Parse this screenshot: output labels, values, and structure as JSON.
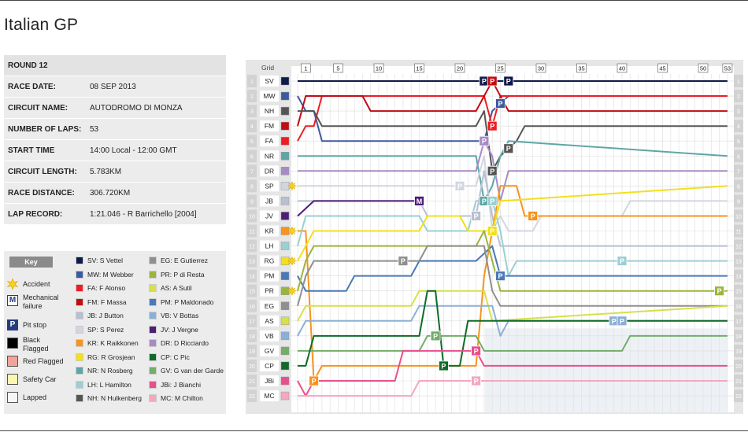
{
  "title": "Italian GP",
  "info": [
    {
      "label": "ROUND 12",
      "value": ""
    },
    {
      "label": "RACE DATE:",
      "value": "08 SEP 2013"
    },
    {
      "label": "CIRCUIT NAME:",
      "value": "AUTODROMO DI MONZA"
    },
    {
      "label": "NUMBER OF LAPS:",
      "value": "53"
    },
    {
      "label": "START TIME",
      "value": "14:00 Local - 12:00 GMT"
    },
    {
      "label": "CIRCUIT LENGTH:",
      "value": "5.783KM"
    },
    {
      "label": "RACE DISTANCE:",
      "value": "306.720KM"
    },
    {
      "label": "LAP RECORD:",
      "value": "1:21.046 - R Barrichello [2004]"
    }
  ],
  "key": {
    "heading": "Key",
    "symbols": [
      {
        "label": "Accident",
        "icon": "accident-icon"
      },
      {
        "label": "Mechanical failure",
        "icon": "mechanical-failure-icon",
        "letter": "M"
      },
      {
        "label": "Pit stop",
        "icon": "pit-stop-icon",
        "letter": "P"
      },
      {
        "label": "Black Flagged",
        "icon": "black-flag-icon",
        "color": "#000000"
      },
      {
        "label": "Red Flagged",
        "icon": "red-flag-icon",
        "color": "#f2a49a"
      },
      {
        "label": "Safety Car",
        "icon": "safety-car-icon",
        "color": "#fbf6b0"
      },
      {
        "label": "Lapped",
        "icon": "lapped-icon",
        "color": "#f6f6f6"
      }
    ]
  },
  "drivers": [
    {
      "code": "SV",
      "name": "SV: S Vettel",
      "color": "#0e1a4a",
      "grid": 1
    },
    {
      "code": "MW",
      "name": "MW: M Webber",
      "color": "#3d5a9e",
      "grid": 2
    },
    {
      "code": "FA",
      "name": "FA: F Alonso",
      "color": "#ee1c24",
      "grid": 5
    },
    {
      "code": "FM",
      "name": "FM: F Massa",
      "color": "#c10c12",
      "grid": 4
    },
    {
      "code": "JB",
      "name": "JB: J Button",
      "color": "#b8bfd1",
      "grid": 9
    },
    {
      "code": "SP",
      "name": "SP: S Perez",
      "color": "#d2d6e0",
      "grid": 8
    },
    {
      "code": "KR",
      "name": "KR: K Raikkonen",
      "color": "#f7941d",
      "grid": 11
    },
    {
      "code": "RG",
      "name": "RG: R Grosjean",
      "color": "#f2e01c",
      "grid": 13
    },
    {
      "code": "NR",
      "name": "NR: N Rosberg",
      "color": "#5ea6a6",
      "grid": 6
    },
    {
      "code": "LH",
      "name": "LH: L Hamilton",
      "color": "#9ccfd2",
      "grid": 12
    },
    {
      "code": "NH",
      "name": "NH: N Hulkenberg",
      "color": "#555555",
      "grid": 3
    },
    {
      "code": "EG",
      "name": "EG: E Gutierrez",
      "color": "#8f8f8f",
      "grid": 16
    },
    {
      "code": "PR",
      "name": "PR: P di Resta",
      "color": "#9bb53c",
      "grid": 15
    },
    {
      "code": "AS",
      "name": "AS: A Sutil",
      "color": "#d6e04a",
      "grid": 17
    },
    {
      "code": "PM",
      "name": "PM: P Maldonado",
      "color": "#4a78b8",
      "grid": 14
    },
    {
      "code": "VB",
      "name": "VB: V Bottas",
      "color": "#8bb0d6",
      "grid": 18
    },
    {
      "code": "JV",
      "name": "JV: J Vergne",
      "color": "#4e1d74",
      "grid": 10
    },
    {
      "code": "DR",
      "name": "DR: D Ricciardo",
      "color": "#a78bc4",
      "grid": 7
    },
    {
      "code": "CP",
      "name": "CP: C Pic",
      "color": "#0f6b27",
      "grid": 20
    },
    {
      "code": "GV",
      "name": "GV: G van der Garde",
      "color": "#72ad6a",
      "grid": 19
    },
    {
      "code": "JBi",
      "name": "JBi: J Bianchi",
      "color": "#e8508b",
      "grid": 21
    },
    {
      "code": "MC",
      "name": "MC: M Chilton",
      "color": "#f4a7bf",
      "grid": 22
    }
  ],
  "chart_data": {
    "type": "line",
    "title": "",
    "xlabel": "",
    "ylabel": "",
    "header_label": "Grid",
    "laps_total": 53,
    "lap_ticks": [
      "1",
      "5",
      "10",
      "15",
      "20",
      "25",
      "30",
      "35",
      "40",
      "45",
      "50",
      "53"
    ],
    "positions": 22,
    "grid_order": [
      "SV",
      "MW",
      "NH",
      "FM",
      "FA",
      "NR",
      "DR",
      "SP",
      "JB",
      "JV",
      "KR",
      "LH",
      "RG",
      "PM",
      "PR",
      "EG",
      "AS",
      "VB",
      "GV",
      "CP",
      "JBi",
      "MC"
    ],
    "series": [
      {
        "code": "SV",
        "points": [
          [
            0,
            1
          ],
          [
            53,
            1
          ]
        ]
      },
      {
        "code": "MW",
        "points": [
          [
            0,
            2
          ],
          [
            1,
            3
          ],
          [
            2,
            3
          ],
          [
            3,
            5
          ],
          [
            23,
            5
          ],
          [
            24,
            3
          ],
          [
            26,
            2
          ],
          [
            28,
            2
          ],
          [
            53,
            2
          ]
        ]
      },
      {
        "code": "FA",
        "points": [
          [
            0,
            5
          ],
          [
            1,
            4
          ],
          [
            2,
            4
          ],
          [
            3,
            2
          ],
          [
            8,
            2
          ],
          [
            9,
            2
          ],
          [
            22,
            2
          ],
          [
            23,
            2
          ],
          [
            24,
            4
          ],
          [
            25,
            2
          ],
          [
            53,
            2
          ]
        ]
      },
      {
        "code": "FM",
        "points": [
          [
            0,
            4
          ],
          [
            1,
            2
          ],
          [
            8,
            2
          ],
          [
            9,
            3
          ],
          [
            22,
            3
          ],
          [
            23,
            2
          ],
          [
            24,
            1
          ],
          [
            25,
            2
          ],
          [
            26,
            3
          ],
          [
            53,
            3
          ]
        ]
      },
      {
        "code": "NH",
        "points": [
          [
            0,
            3
          ],
          [
            2,
            3
          ],
          [
            3,
            4
          ],
          [
            22,
            4
          ],
          [
            23,
            3
          ],
          [
            24,
            7
          ],
          [
            25,
            6
          ],
          [
            27,
            5
          ],
          [
            28,
            4
          ],
          [
            53,
            4
          ]
        ]
      },
      {
        "code": "NR",
        "points": [
          [
            0,
            6
          ],
          [
            22,
            6
          ],
          [
            23,
            9
          ],
          [
            24,
            8
          ],
          [
            25,
            6
          ],
          [
            26,
            5
          ],
          [
            53,
            6
          ]
        ]
      },
      {
        "code": "DR",
        "points": [
          [
            0,
            7
          ],
          [
            22,
            7
          ],
          [
            23,
            5
          ],
          [
            24,
            6
          ],
          [
            25,
            9
          ],
          [
            26,
            7
          ],
          [
            53,
            7
          ]
        ]
      },
      {
        "code": "SP",
        "points": [
          [
            0,
            8
          ],
          [
            22,
            8
          ],
          [
            23,
            6
          ],
          [
            24,
            11
          ],
          [
            25,
            10
          ],
          [
            26,
            11
          ],
          [
            29,
            11
          ],
          [
            30,
            10
          ],
          [
            40,
            10
          ],
          [
            41,
            9
          ],
          [
            53,
            9
          ]
        ]
      },
      {
        "code": "JB",
        "points": [
          [
            0,
            9
          ],
          [
            15,
            9
          ],
          [
            16,
            10
          ],
          [
            22,
            10
          ],
          [
            23,
            7
          ],
          [
            24,
            10
          ],
          [
            25,
            12
          ],
          [
            53,
            12
          ]
        ]
      },
      {
        "code": "JV",
        "points": [
          [
            0,
            10
          ],
          [
            2,
            9
          ],
          [
            15,
            9
          ]
        ]
      },
      {
        "code": "KR",
        "points": [
          [
            0,
            11
          ],
          [
            1,
            11
          ],
          [
            2,
            21
          ],
          [
            3,
            20
          ],
          [
            22,
            20
          ],
          [
            23,
            14
          ],
          [
            25,
            8
          ],
          [
            27,
            8
          ],
          [
            28,
            10
          ],
          [
            53,
            10
          ]
        ]
      },
      {
        "code": "LH",
        "points": [
          [
            0,
            12
          ],
          [
            1,
            10
          ],
          [
            15,
            10
          ],
          [
            16,
            11
          ],
          [
            21,
            11
          ],
          [
            22,
            9
          ],
          [
            24,
            9
          ],
          [
            25,
            11
          ],
          [
            26,
            14
          ],
          [
            27,
            13
          ],
          [
            53,
            13
          ]
        ]
      },
      {
        "code": "RG",
        "points": [
          [
            0,
            13
          ],
          [
            1,
            12
          ],
          [
            2,
            11
          ],
          [
            15,
            11
          ],
          [
            16,
            10
          ],
          [
            20,
            10
          ],
          [
            21,
            11
          ],
          [
            24,
            11
          ],
          [
            25,
            9
          ],
          [
            53,
            8
          ]
        ]
      },
      {
        "code": "PM",
        "points": [
          [
            0,
            14
          ],
          [
            1,
            15
          ],
          [
            6,
            15
          ],
          [
            7,
            14
          ],
          [
            14,
            14
          ],
          [
            15,
            13
          ],
          [
            22,
            13
          ],
          [
            24,
            12
          ],
          [
            25,
            14
          ],
          [
            53,
            14
          ]
        ]
      },
      {
        "code": "PR",
        "points": [
          [
            0,
            15
          ],
          [
            1,
            13
          ],
          [
            2,
            12
          ],
          [
            22,
            12
          ],
          [
            23,
            11
          ],
          [
            24,
            13
          ],
          [
            25,
            15
          ],
          [
            52,
            15
          ],
          [
            53,
            15
          ]
        ]
      },
      {
        "code": "EG",
        "points": [
          [
            0,
            16
          ],
          [
            1,
            14
          ],
          [
            2,
            13
          ],
          [
            15,
            13
          ],
          [
            16,
            12
          ],
          [
            23,
            12
          ],
          [
            24,
            15
          ],
          [
            25,
            16
          ],
          [
            53,
            16
          ]
        ]
      },
      {
        "code": "AS",
        "points": [
          [
            0,
            17
          ],
          [
            1,
            16
          ],
          [
            2,
            16
          ],
          [
            14,
            16
          ],
          [
            15,
            15
          ],
          [
            23,
            15
          ],
          [
            24,
            17
          ],
          [
            53,
            16
          ]
        ]
      },
      {
        "code": "VB",
        "points": [
          [
            0,
            18
          ],
          [
            1,
            17
          ],
          [
            2,
            17
          ],
          [
            14,
            17
          ],
          [
            15,
            16
          ],
          [
            24,
            16
          ],
          [
            25,
            18
          ],
          [
            26,
            17
          ],
          [
            53,
            17
          ]
        ]
      },
      {
        "code": "GV",
        "points": [
          [
            0,
            19
          ],
          [
            1,
            19
          ],
          [
            2,
            19
          ],
          [
            15,
            19
          ],
          [
            16,
            18
          ],
          [
            22,
            18
          ],
          [
            23,
            19
          ],
          [
            40,
            19
          ],
          [
            41,
            18
          ],
          [
            53,
            18
          ]
        ]
      },
      {
        "code": "CP",
        "points": [
          [
            0,
            20
          ],
          [
            1,
            20
          ],
          [
            2,
            18
          ],
          [
            15,
            18
          ],
          [
            16,
            15
          ],
          [
            17,
            15
          ],
          [
            18,
            20
          ],
          [
            20,
            20
          ],
          [
            21,
            17
          ],
          [
            40,
            17
          ],
          [
            41,
            17
          ],
          [
            53,
            17
          ]
        ]
      },
      {
        "code": "JBi",
        "points": [
          [
            0,
            21
          ],
          [
            1,
            22
          ],
          [
            2,
            21
          ],
          [
            12,
            21
          ],
          [
            13,
            19
          ],
          [
            22,
            19
          ],
          [
            23,
            20
          ],
          [
            53,
            20
          ]
        ]
      },
      {
        "code": "MC",
        "points": [
          [
            0,
            22
          ],
          [
            1,
            22
          ],
          [
            2,
            22
          ],
          [
            14,
            22
          ],
          [
            15,
            21
          ],
          [
            22,
            21
          ],
          [
            23,
            21
          ],
          [
            53,
            21
          ]
        ]
      }
    ],
    "pit_stops": [
      {
        "code": "SV",
        "lap": 23
      },
      {
        "code": "SV",
        "lap": 26
      },
      {
        "code": "MW",
        "lap": 25
      },
      {
        "code": "FA",
        "lap": 24
      },
      {
        "code": "FM",
        "lap": 24
      },
      {
        "code": "NH",
        "lap": 24
      },
      {
        "code": "NH",
        "lap": 26
      },
      {
        "code": "NR",
        "lap": 23
      },
      {
        "code": "DR",
        "lap": 23
      },
      {
        "code": "RG",
        "lap": 24
      },
      {
        "code": "JB",
        "lap": 22
      },
      {
        "code": "KR",
        "lap": 2
      },
      {
        "code": "KR",
        "lap": 29
      },
      {
        "code": "LH",
        "lap": 24
      },
      {
        "code": "LH",
        "lap": 40
      },
      {
        "code": "PM",
        "lap": 25
      },
      {
        "code": "SP",
        "lap": 20
      },
      {
        "code": "EG",
        "lap": 13
      },
      {
        "code": "PR",
        "lap": 52
      },
      {
        "code": "CP",
        "lap": 18
      },
      {
        "code": "GV",
        "lap": 17
      },
      {
        "code": "VB",
        "lap": 39
      },
      {
        "code": "VB",
        "lap": 40
      },
      {
        "code": "JBi",
        "lap": 22
      },
      {
        "code": "MC",
        "lap": 22
      }
    ],
    "mechanical_failures": [
      {
        "code": "JV",
        "lap": 15
      }
    ],
    "accidents_on_grid": [
      8,
      11,
      13,
      15
    ],
    "lapped_from_lap": 23,
    "lapped_from_position": 18
  }
}
